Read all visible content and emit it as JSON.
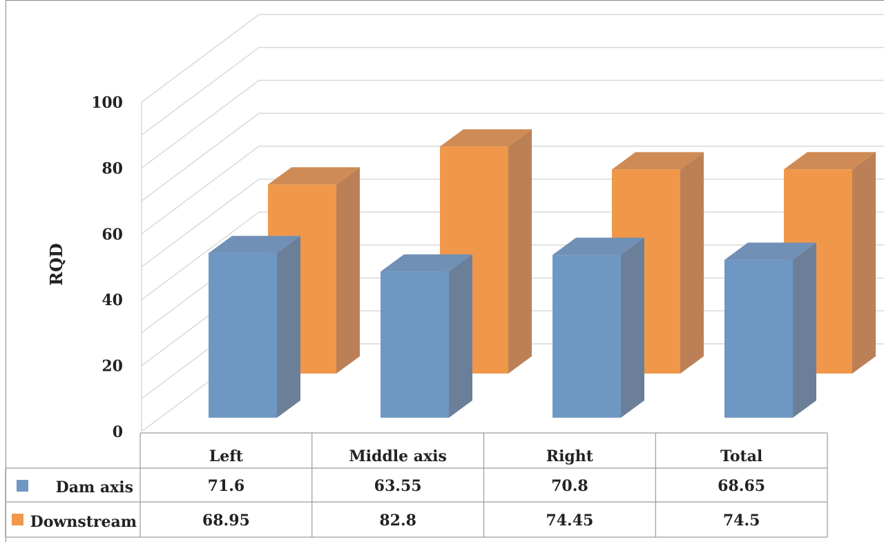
{
  "chart_data": {
    "type": "bar",
    "ylabel": "RQD",
    "ylim": [
      0,
      100
    ],
    "yticks": [
      "0",
      "20",
      "40",
      "60",
      "80",
      "100"
    ],
    "categories": [
      "Left",
      "Middle axis",
      "Right",
      "Total"
    ],
    "series": [
      {
        "name": "Dam axis",
        "values": [
          71.6,
          63.55,
          70.8,
          68.65
        ],
        "display": [
          "71.6",
          "63.55",
          "70.8",
          "68.65"
        ],
        "color": "#6f97c3",
        "side": "#6c7f99",
        "top": "#7190b5"
      },
      {
        "name": "Downstream",
        "values": [
          68.95,
          82.8,
          74.45,
          74.5
        ],
        "display": [
          "68.95",
          "82.8",
          "74.45",
          "74.5"
        ],
        "color": "#f0974a",
        "side": "#bc8057",
        "top": "#cf8b55"
      }
    ],
    "legend": "data-table"
  }
}
